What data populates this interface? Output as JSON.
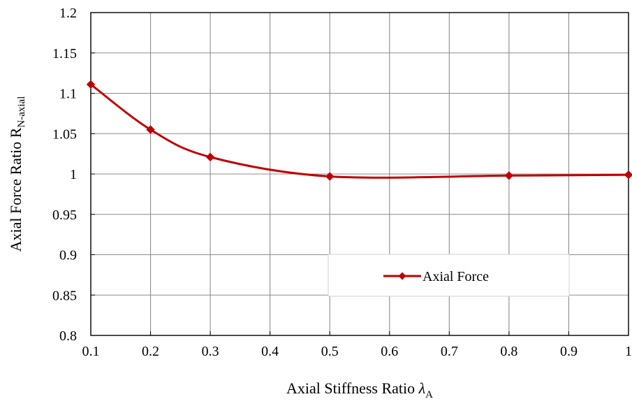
{
  "chart_data": {
    "type": "line",
    "xlabel": "Axial Stiffness Ratio",
    "xlabel_symbol": "λ",
    "xlabel_subscript": "A",
    "ylabel": "Axial Force Ratio R",
    "ylabel_subscript": "N-axial",
    "xlim": [
      0.1,
      1
    ],
    "ylim": [
      0.8,
      1.2
    ],
    "x_ticks": [
      "0.1",
      "0.2",
      "0.3",
      "0.4",
      "0.5",
      "0.6",
      "0.7",
      "0.8",
      "0.9",
      "1"
    ],
    "y_ticks": [
      "0.8",
      "0.85",
      "0.9",
      "0.95",
      "1",
      "1.05",
      "1.1",
      "1.15",
      "1.2"
    ],
    "grid": true,
    "legend_position": "lower-right",
    "series": [
      {
        "name": "Axial Force",
        "color": "#c00000",
        "marker": "diamond",
        "smooth": true,
        "x": [
          0.1,
          0.2,
          0.3,
          0.5,
          0.8,
          1.0
        ],
        "y": [
          1.111,
          1.055,
          1.021,
          0.997,
          0.998,
          0.999
        ]
      }
    ]
  }
}
